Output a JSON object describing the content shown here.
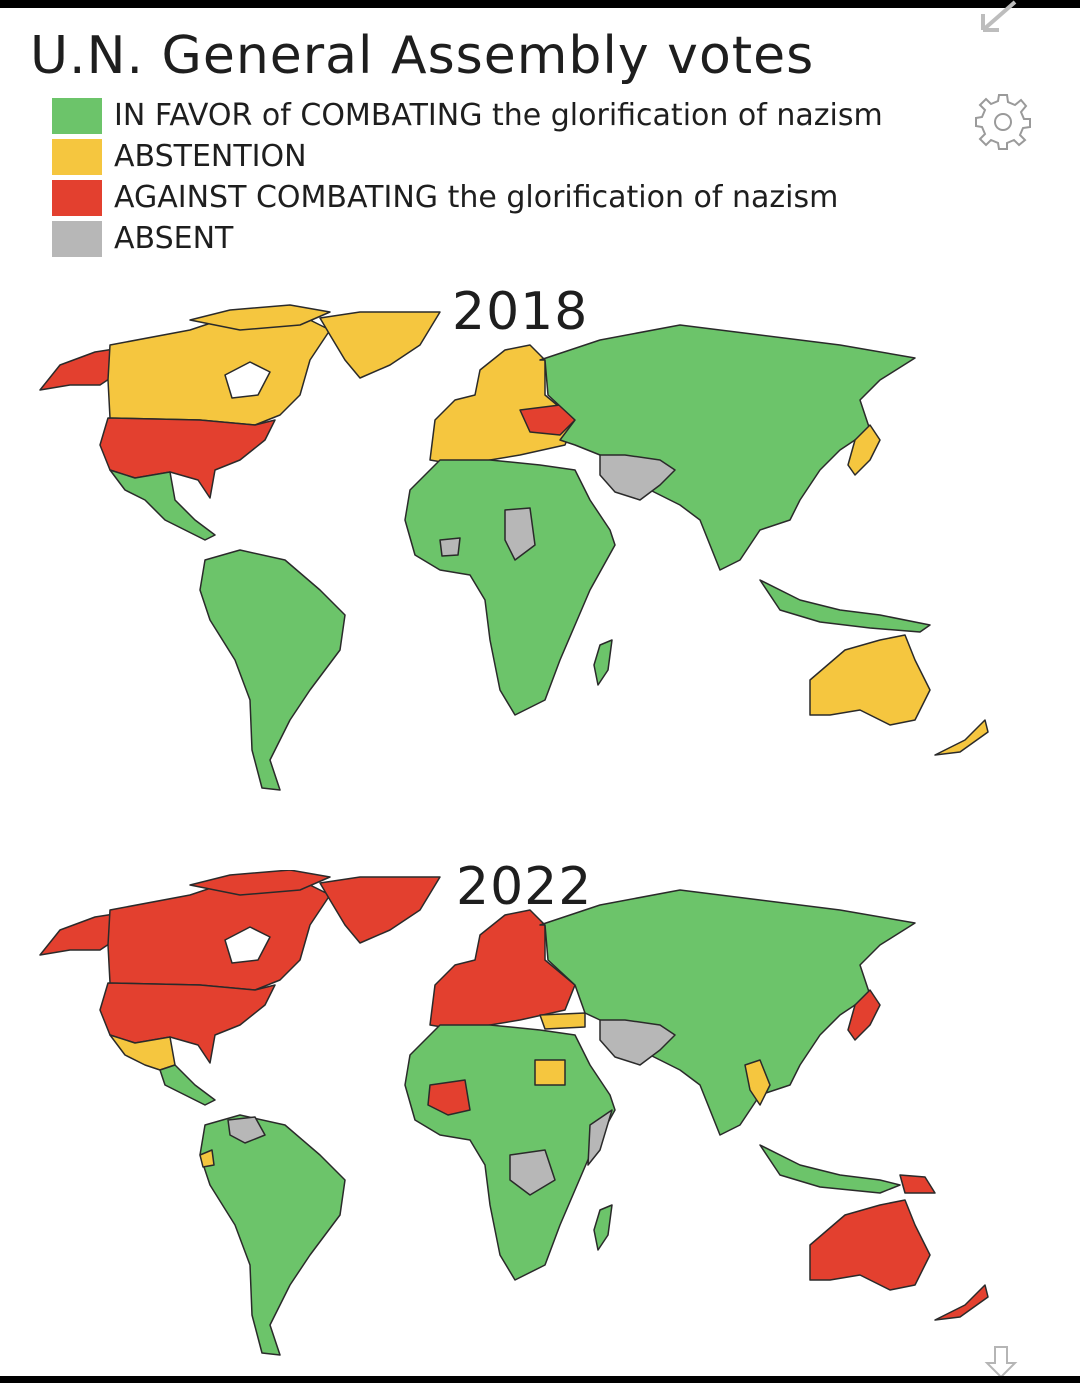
{
  "title": "U.N. General Assembly votes",
  "legend": [
    {
      "label": "IN FAVOR of COMBATING the glorification of nazism",
      "color": "#6cc46a"
    },
    {
      "label": "ABSTENTION",
      "color": "#f5c63f"
    },
    {
      "label": "AGAINST COMBATING the glorification of nazism",
      "color": "#e3402f"
    },
    {
      "label": "ABSENT",
      "color": "#b7b7b7"
    }
  ],
  "maps": [
    {
      "year": "2018",
      "regions": {
        "north_america_west": "against",
        "canada": "abstention",
        "greenland": "abstention",
        "usa": "against",
        "mexico_central": "favor",
        "south_america": "favor",
        "europe": "abstention",
        "ukraine": "against",
        "russia_asia": "favor",
        "iran_afghanistan": "absent",
        "japan": "abstention",
        "africa": "favor",
        "libya": "absent",
        "mali_region": "absent",
        "australia": "abstention",
        "new_zealand": "abstention",
        "indonesia": "favor",
        "madagascar": "favor"
      }
    },
    {
      "year": "2022",
      "regions": {
        "north_america_west": "against",
        "canada": "against",
        "greenland": "against",
        "usa": "against",
        "mexico_central": "abstention",
        "central_america": "favor",
        "south_america": "favor",
        "venezuela": "absent",
        "europe": "against",
        "turkey": "abstention",
        "russia_asia": "favor",
        "iran_afghanistan": "absent",
        "myanmar": "abstention",
        "japan": "against",
        "africa": "favor",
        "egypt": "abstention",
        "mali": "against",
        "drc": "absent",
        "somalia": "absent",
        "australia": "against",
        "new_zealand": "against",
        "png": "against",
        "indonesia": "favor",
        "madagascar": "favor"
      }
    }
  ],
  "icons": [
    "expand-icon",
    "gear-icon",
    "scroll-down-icon"
  ]
}
